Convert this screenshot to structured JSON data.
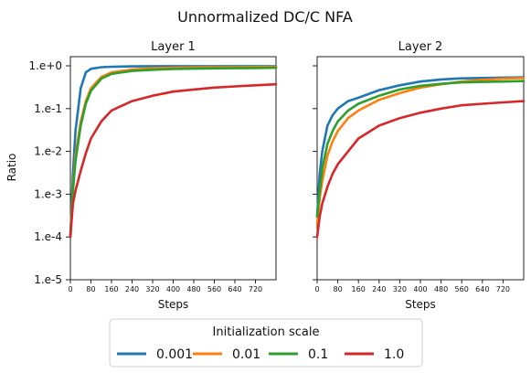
{
  "figure": {
    "title": "Unnormalized DC/C NFA",
    "ylabel": "Ratio",
    "legend": {
      "title": "Initialization scale",
      "placement": "bottom-center"
    }
  },
  "chart_data": [
    {
      "type": "line",
      "title": "Layer 1",
      "xlabel": "Steps",
      "ylabel": "Ratio",
      "xlim": [
        0,
        800
      ],
      "ylim": [
        1e-05,
        1
      ],
      "yscale": "log",
      "grid": false,
      "x_ticks": [
        0,
        80,
        160,
        240,
        320,
        400,
        480,
        560,
        640,
        720
      ],
      "y_ticks": [
        1e-05,
        0.0001,
        0.001,
        0.01,
        0.1,
        1
      ],
      "y_tick_labels": [
        "1.e-5",
        "1.e-4",
        "1.e-3",
        "1.e-2",
        "1.e-1",
        "1.e+0"
      ],
      "x": [
        0,
        10,
        20,
        40,
        60,
        80,
        120,
        160,
        240,
        320,
        400,
        480,
        560,
        640,
        720,
        800
      ],
      "series": [
        {
          "name": "0.001",
          "color": "#1f77b4",
          "values": [
            0.0001,
            0.003,
            0.03,
            0.3,
            0.7,
            0.85,
            0.93,
            0.95,
            0.97,
            0.98,
            0.98,
            0.98,
            0.98,
            0.98,
            0.98,
            0.98
          ]
        },
        {
          "name": "0.01",
          "color": "#ff7f0e",
          "values": [
            0.0001,
            0.0015,
            0.008,
            0.05,
            0.15,
            0.3,
            0.55,
            0.7,
            0.82,
            0.88,
            0.9,
            0.92,
            0.93,
            0.93,
            0.94,
            0.95
          ]
        },
        {
          "name": "0.1",
          "color": "#2ca02c",
          "values": [
            0.0001,
            0.0012,
            0.006,
            0.04,
            0.13,
            0.26,
            0.5,
            0.65,
            0.76,
            0.81,
            0.84,
            0.86,
            0.87,
            0.88,
            0.89,
            0.9
          ]
        },
        {
          "name": "1.0",
          "color": "#d62728",
          "values": [
            0.0001,
            0.0006,
            0.0012,
            0.0035,
            0.009,
            0.02,
            0.05,
            0.09,
            0.15,
            0.2,
            0.25,
            0.28,
            0.31,
            0.33,
            0.35,
            0.37
          ]
        }
      ]
    },
    {
      "type": "line",
      "title": "Layer 2",
      "xlabel": "Steps",
      "ylabel": "",
      "xlim": [
        0,
        800
      ],
      "ylim": [
        1e-05,
        1
      ],
      "yscale": "log",
      "grid": false,
      "x_ticks": [
        0,
        80,
        160,
        240,
        320,
        400,
        480,
        560,
        640,
        720
      ],
      "y_ticks": [
        1e-05,
        0.0001,
        0.001,
        0.01,
        0.1,
        1
      ],
      "x": [
        0,
        10,
        20,
        40,
        60,
        80,
        120,
        160,
        240,
        320,
        400,
        480,
        560,
        640,
        720,
        800
      ],
      "series": [
        {
          "name": "0.001",
          "color": "#1f77b4",
          "values": [
            0.0003,
            0.003,
            0.01,
            0.04,
            0.07,
            0.1,
            0.15,
            0.18,
            0.27,
            0.35,
            0.43,
            0.48,
            0.51,
            0.52,
            0.53,
            0.54
          ]
        },
        {
          "name": "0.01",
          "color": "#ff7f0e",
          "values": [
            0.0002,
            0.0008,
            0.002,
            0.008,
            0.017,
            0.03,
            0.06,
            0.09,
            0.16,
            0.23,
            0.31,
            0.37,
            0.43,
            0.47,
            0.5,
            0.52
          ]
        },
        {
          "name": "0.1",
          "color": "#2ca02c",
          "values": [
            0.0003,
            0.0012,
            0.004,
            0.015,
            0.03,
            0.05,
            0.09,
            0.13,
            0.2,
            0.28,
            0.34,
            0.38,
            0.41,
            0.42,
            0.43,
            0.44
          ]
        },
        {
          "name": "1.0",
          "color": "#d62728",
          "values": [
            0.0001,
            0.0003,
            0.0006,
            0.0015,
            0.003,
            0.005,
            0.01,
            0.02,
            0.04,
            0.06,
            0.08,
            0.1,
            0.12,
            0.13,
            0.14,
            0.15
          ]
        }
      ]
    }
  ]
}
